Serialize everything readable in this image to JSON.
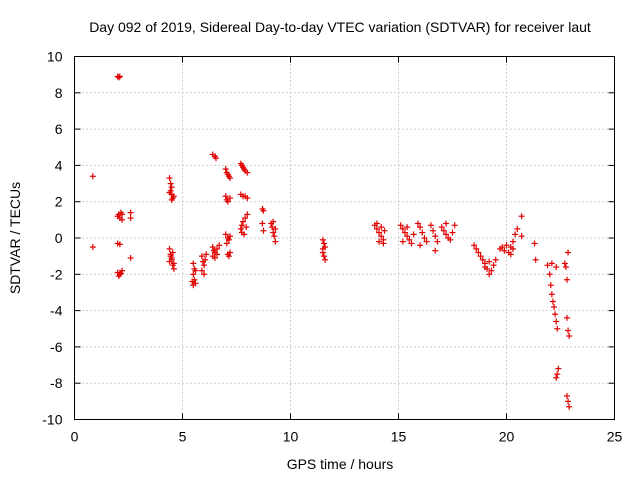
{
  "chart_data": {
    "type": "scatter",
    "title": "Day 092 of 2019, Sidereal Day-to-day VTEC variation (SDTVAR) for receiver laut",
    "xlabel": "GPS time / hours",
    "ylabel": "SDTVAR / TECUs",
    "xlim": [
      0,
      25
    ],
    "ylim": [
      -10,
      10
    ],
    "xticks": [
      0,
      5,
      10,
      15,
      20,
      25
    ],
    "yticks": [
      -10,
      -8,
      -6,
      -4,
      -2,
      0,
      2,
      4,
      6,
      8,
      10
    ],
    "grid": true,
    "marker": "+",
    "color": "#e00000",
    "series": [
      {
        "name": "SDTVAR",
        "points": [
          [
            0.85,
            3.4
          ],
          [
            0.85,
            -0.5
          ],
          [
            2.0,
            8.9
          ],
          [
            2.05,
            8.85
          ],
          [
            2.1,
            8.9
          ],
          [
            2.0,
            1.2
          ],
          [
            2.05,
            1.3
          ],
          [
            2.1,
            1.1
          ],
          [
            2.15,
            1.4
          ],
          [
            2.2,
            1.3
          ],
          [
            2.2,
            1.0
          ],
          [
            2.0,
            -0.3
          ],
          [
            2.1,
            -0.35
          ],
          [
            2.0,
            -1.9
          ],
          [
            2.05,
            -2.1
          ],
          [
            2.1,
            -2.0
          ],
          [
            2.15,
            -1.95
          ],
          [
            2.2,
            -1.8
          ],
          [
            2.6,
            1.4
          ],
          [
            2.6,
            1.1
          ],
          [
            2.6,
            -1.1
          ],
          [
            4.4,
            3.3
          ],
          [
            4.45,
            3.0
          ],
          [
            4.5,
            2.8
          ],
          [
            4.4,
            2.5
          ],
          [
            4.5,
            2.4
          ],
          [
            4.55,
            2.2
          ],
          [
            4.6,
            2.3
          ],
          [
            4.45,
            2.6
          ],
          [
            4.5,
            2.1
          ],
          [
            4.4,
            -0.6
          ],
          [
            4.45,
            -0.9
          ],
          [
            4.5,
            -1.1
          ],
          [
            4.4,
            -1.3
          ],
          [
            4.55,
            -1.5
          ],
          [
            4.6,
            -1.7
          ],
          [
            4.5,
            -1.2
          ],
          [
            4.45,
            -1.0
          ],
          [
            4.55,
            -0.8
          ],
          [
            4.6,
            -1.4
          ],
          [
            5.5,
            -1.4
          ],
          [
            5.55,
            -1.7
          ],
          [
            5.5,
            -2.0
          ],
          [
            5.45,
            -2.4
          ],
          [
            5.5,
            -2.6
          ],
          [
            5.6,
            -2.5
          ],
          [
            5.55,
            -2.3
          ],
          [
            5.6,
            -1.8
          ],
          [
            5.9,
            -1.0
          ],
          [
            5.95,
            -1.3
          ],
          [
            6.0,
            -1.5
          ],
          [
            5.9,
            -1.8
          ],
          [
            6.0,
            -2.0
          ],
          [
            6.05,
            -1.2
          ],
          [
            6.1,
            -0.9
          ],
          [
            6.4,
            4.6
          ],
          [
            6.5,
            4.5
          ],
          [
            6.55,
            4.4
          ],
          [
            6.4,
            -0.5
          ],
          [
            6.5,
            -0.8
          ],
          [
            6.6,
            -0.6
          ],
          [
            6.4,
            -1.0
          ],
          [
            6.5,
            -1.1
          ],
          [
            6.6,
            -0.9
          ],
          [
            6.7,
            -0.4
          ],
          [
            6.45,
            -0.7
          ],
          [
            7.0,
            3.8
          ],
          [
            7.05,
            3.6
          ],
          [
            7.1,
            3.5
          ],
          [
            7.15,
            3.4
          ],
          [
            7.2,
            3.3
          ],
          [
            7.0,
            2.3
          ],
          [
            7.05,
            2.1
          ],
          [
            7.1,
            2.0
          ],
          [
            7.2,
            2.2
          ],
          [
            7.0,
            0.2
          ],
          [
            7.1,
            0.0
          ],
          [
            7.15,
            -0.1
          ],
          [
            7.2,
            0.1
          ],
          [
            7.05,
            -0.3
          ],
          [
            7.1,
            -0.9
          ],
          [
            7.15,
            -1.0
          ],
          [
            7.2,
            -0.8
          ],
          [
            7.7,
            4.1
          ],
          [
            7.75,
            4.0
          ],
          [
            7.8,
            3.9
          ],
          [
            7.85,
            3.8
          ],
          [
            7.9,
            3.7
          ],
          [
            8.0,
            3.6
          ],
          [
            7.7,
            2.4
          ],
          [
            7.8,
            2.3
          ],
          [
            7.9,
            2.3
          ],
          [
            8.0,
            2.2
          ],
          [
            7.7,
            0.5
          ],
          [
            7.75,
            0.7
          ],
          [
            7.8,
            0.9
          ],
          [
            7.9,
            1.1
          ],
          [
            8.0,
            1.3
          ],
          [
            7.75,
            0.3
          ],
          [
            7.85,
            0.2
          ],
          [
            7.95,
            0.6
          ],
          [
            8.7,
            1.6
          ],
          [
            8.75,
            1.5
          ],
          [
            8.7,
            0.8
          ],
          [
            8.75,
            0.4
          ],
          [
            9.1,
            0.8
          ],
          [
            9.15,
            0.6
          ],
          [
            9.2,
            0.3
          ],
          [
            9.25,
            0.1
          ],
          [
            9.3,
            -0.2
          ],
          [
            9.2,
            0.9
          ],
          [
            9.3,
            0.5
          ],
          [
            11.5,
            -0.1
          ],
          [
            11.55,
            -0.3
          ],
          [
            11.6,
            -0.5
          ],
          [
            11.5,
            -0.8
          ],
          [
            11.55,
            -1.0
          ],
          [
            11.6,
            -1.2
          ],
          [
            11.5,
            -0.6
          ],
          [
            13.9,
            0.7
          ],
          [
            14.0,
            0.5
          ],
          [
            14.1,
            0.3
          ],
          [
            14.2,
            0.1
          ],
          [
            14.3,
            -0.1
          ],
          [
            14.0,
            0.8
          ],
          [
            14.2,
            0.6
          ],
          [
            14.3,
            -0.3
          ],
          [
            14.1,
            -0.2
          ],
          [
            14.35,
            0.4
          ],
          [
            15.1,
            0.7
          ],
          [
            15.2,
            0.5
          ],
          [
            15.3,
            0.3
          ],
          [
            15.4,
            0.1
          ],
          [
            15.5,
            -0.1
          ],
          [
            15.6,
            -0.3
          ],
          [
            15.2,
            -0.2
          ],
          [
            15.4,
            0.6
          ],
          [
            15.7,
            0.2
          ],
          [
            15.9,
            0.8
          ],
          [
            16.0,
            0.6
          ],
          [
            16.1,
            0.3
          ],
          [
            16.2,
            0.0
          ],
          [
            16.3,
            -0.2
          ],
          [
            16.0,
            -0.4
          ],
          [
            16.5,
            0.7
          ],
          [
            16.6,
            0.4
          ],
          [
            16.7,
            0.1
          ],
          [
            16.8,
            -0.2
          ],
          [
            16.7,
            -0.7
          ],
          [
            17.0,
            0.6
          ],
          [
            17.1,
            0.4
          ],
          [
            17.2,
            0.2
          ],
          [
            17.3,
            0.0
          ],
          [
            17.4,
            -0.1
          ],
          [
            17.5,
            0.3
          ],
          [
            17.6,
            0.7
          ],
          [
            17.2,
            0.8
          ],
          [
            18.5,
            -0.4
          ],
          [
            18.6,
            -0.6
          ],
          [
            18.7,
            -0.8
          ],
          [
            18.8,
            -1.0
          ],
          [
            18.9,
            -1.2
          ],
          [
            19.0,
            -1.4
          ],
          [
            19.1,
            -1.7
          ],
          [
            19.2,
            -2.0
          ],
          [
            19.3,
            -1.8
          ],
          [
            19.4,
            -1.5
          ],
          [
            19.5,
            -1.2
          ],
          [
            19.0,
            -1.6
          ],
          [
            19.2,
            -1.3
          ],
          [
            19.7,
            -0.6
          ],
          [
            19.8,
            -0.5
          ],
          [
            19.9,
            -0.7
          ],
          [
            20.0,
            -0.4
          ],
          [
            20.1,
            -0.8
          ],
          [
            20.2,
            -0.5
          ],
          [
            20.3,
            -0.2
          ],
          [
            20.4,
            0.2
          ],
          [
            20.5,
            0.5
          ],
          [
            20.3,
            -0.6
          ],
          [
            20.2,
            -0.9
          ],
          [
            20.7,
            1.2
          ],
          [
            20.7,
            0.1
          ],
          [
            21.3,
            -0.3
          ],
          [
            21.35,
            -1.2
          ],
          [
            21.9,
            -1.5
          ],
          [
            22.0,
            -2.0
          ],
          [
            22.05,
            -2.6
          ],
          [
            22.1,
            -3.1
          ],
          [
            22.15,
            -3.5
          ],
          [
            22.2,
            -3.8
          ],
          [
            22.25,
            -4.2
          ],
          [
            22.3,
            -4.6
          ],
          [
            22.35,
            -5.0
          ],
          [
            22.1,
            -1.4
          ],
          [
            22.3,
            -1.6
          ],
          [
            22.3,
            -7.7
          ],
          [
            22.35,
            -7.5
          ],
          [
            22.4,
            -7.2
          ],
          [
            22.7,
            -1.4
          ],
          [
            22.75,
            -1.6
          ],
          [
            22.8,
            -2.3
          ],
          [
            22.85,
            -0.8
          ],
          [
            22.8,
            -4.4
          ],
          [
            22.85,
            -5.1
          ],
          [
            22.9,
            -5.4
          ],
          [
            22.8,
            -8.7
          ],
          [
            22.85,
            -9.0
          ],
          [
            22.9,
            -9.3
          ]
        ]
      }
    ]
  }
}
